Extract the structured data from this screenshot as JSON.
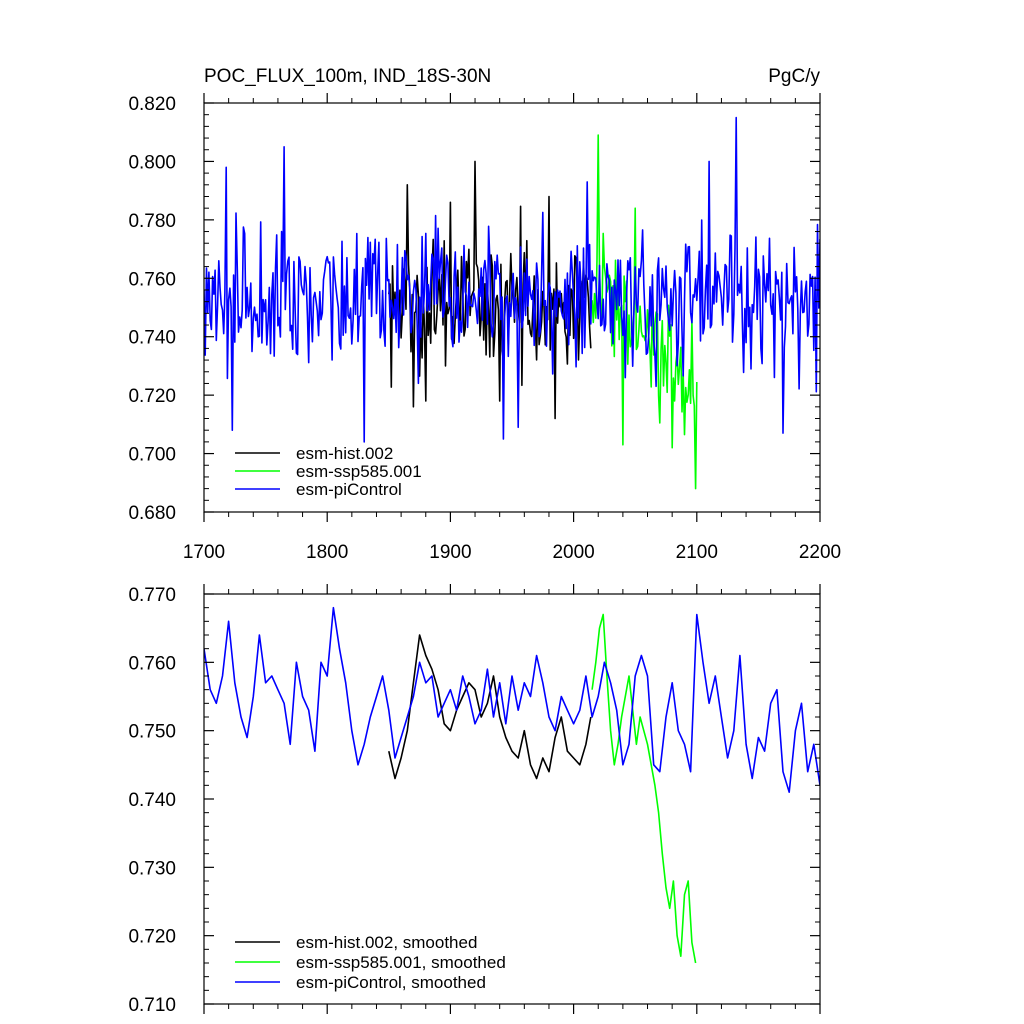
{
  "figure": {
    "title_left": "POC_FLUX_100m, IND_18S-30N",
    "title_right": "PgC/y"
  },
  "chart_data": [
    {
      "type": "line",
      "panel": "raw",
      "title": "POC_FLUX_100m, IND_18S-30N",
      "units": "PgC/y",
      "xlim": [
        1700,
        2200
      ],
      "ylim": [
        0.68,
        0.82
      ],
      "xticks": [
        1700,
        1800,
        1900,
        2000,
        2100,
        2200
      ],
      "yticks": [
        0.68,
        0.7,
        0.72,
        0.74,
        0.76,
        0.78,
        0.8,
        0.82
      ],
      "x_tick_labels": [
        "1700",
        "1800",
        "1900",
        "2000",
        "2100",
        "2200"
      ],
      "y_tick_labels": [
        "0.680",
        "0.700",
        "0.720",
        "0.740",
        "0.760",
        "0.780",
        "0.800",
        "0.820"
      ],
      "legend_location": "bottom-left",
      "series": [
        {
          "name": "esm-hist.002",
          "color": "#000000",
          "x_start": 1850,
          "x_end": 2014,
          "mean": 0.751,
          "spread": 0.018,
          "peaks": [
            [
              1865,
              0.792
            ],
            [
              1920,
              0.8
            ],
            [
              1900,
              0.786
            ],
            [
              1980,
              0.788
            ],
            [
              1985,
              0.78
            ]
          ],
          "troughs": [
            [
              1870,
              0.716
            ],
            [
              1940,
              0.718
            ],
            [
              1985,
              0.712
            ],
            [
              1880,
              0.718
            ]
          ]
        },
        {
          "name": "esm-ssp585.001",
          "color": "#00ff00",
          "x_start": 2015,
          "x_end": 2100,
          "mean_start": 0.757,
          "mean_end": 0.72,
          "spread": 0.017,
          "peaks": [
            [
              2020,
              0.809
            ],
            [
              2050,
              0.784
            ]
          ],
          "troughs": [
            [
              2099,
              0.688
            ],
            [
              2080,
              0.702
            ],
            [
              2040,
              0.703
            ]
          ]
        },
        {
          "name": "esm-piControl",
          "color": "#0000ff",
          "x_start": 1700,
          "x_end": 2200,
          "mean": 0.753,
          "spread": 0.019,
          "peaks": [
            [
              1765,
              0.805
            ],
            [
              2132,
              0.815
            ],
            [
              1718,
              0.798
            ],
            [
              2110,
              0.8
            ],
            [
              2011,
              0.793
            ]
          ],
          "troughs": [
            [
              1830,
              0.704
            ],
            [
              1723,
              0.708
            ],
            [
              2170,
              0.707
            ],
            [
              1943,
              0.705
            ],
            [
              1955,
              0.709
            ]
          ]
        }
      ]
    },
    {
      "type": "line",
      "panel": "smoothed",
      "xlim": [
        1700,
        2200
      ],
      "ylim": [
        0.71,
        0.77
      ],
      "xticks": [
        1700,
        1800,
        1900,
        2000,
        2100,
        2200
      ],
      "yticks": [
        0.71,
        0.72,
        0.73,
        0.74,
        0.75,
        0.76,
        0.77
      ],
      "y_tick_labels": [
        "0.710",
        "0.720",
        "0.730",
        "0.740",
        "0.750",
        "0.760",
        "0.770"
      ],
      "legend_location": "bottom-left",
      "series": [
        {
          "name": "esm-hist.002, smoothed",
          "color": "#000000",
          "x": [
            1850,
            1855,
            1860,
            1865,
            1870,
            1875,
            1880,
            1885,
            1890,
            1895,
            1900,
            1905,
            1910,
            1915,
            1920,
            1925,
            1930,
            1935,
            1940,
            1945,
            1950,
            1955,
            1960,
            1965,
            1970,
            1975,
            1980,
            1985,
            1990,
            1995,
            2000,
            2005,
            2010,
            2014
          ],
          "values": [
            0.747,
            0.743,
            0.746,
            0.75,
            0.757,
            0.764,
            0.761,
            0.759,
            0.756,
            0.751,
            0.75,
            0.753,
            0.755,
            0.757,
            0.756,
            0.752,
            0.754,
            0.758,
            0.752,
            0.749,
            0.747,
            0.746,
            0.75,
            0.745,
            0.743,
            0.746,
            0.744,
            0.749,
            0.752,
            0.747,
            0.746,
            0.745,
            0.748,
            0.752
          ]
        },
        {
          "name": "esm-ssp585.001, smoothed",
          "color": "#00ff00",
          "x": [
            2015,
            2018,
            2021,
            2024,
            2027,
            2030,
            2033,
            2036,
            2039,
            2042,
            2045,
            2048,
            2051,
            2054,
            2057,
            2060,
            2063,
            2066,
            2069,
            2072,
            2075,
            2078,
            2081,
            2084,
            2087,
            2090,
            2093,
            2096,
            2099
          ],
          "values": [
            0.756,
            0.76,
            0.765,
            0.767,
            0.758,
            0.75,
            0.745,
            0.748,
            0.752,
            0.755,
            0.758,
            0.753,
            0.748,
            0.752,
            0.75,
            0.748,
            0.745,
            0.742,
            0.738,
            0.732,
            0.727,
            0.724,
            0.728,
            0.72,
            0.717,
            0.726,
            0.728,
            0.719,
            0.716
          ]
        },
        {
          "name": "esm-piControl, smoothed",
          "color": "#0000ff",
          "x": [
            1700,
            1705,
            1710,
            1715,
            1720,
            1725,
            1730,
            1735,
            1740,
            1745,
            1750,
            1755,
            1760,
            1765,
            1770,
            1775,
            1780,
            1785,
            1790,
            1795,
            1800,
            1805,
            1810,
            1815,
            1820,
            1825,
            1830,
            1835,
            1840,
            1845,
            1850,
            1855,
            1860,
            1865,
            1870,
            1875,
            1880,
            1885,
            1890,
            1895,
            1900,
            1905,
            1910,
            1915,
            1920,
            1925,
            1930,
            1935,
            1940,
            1945,
            1950,
            1955,
            1960,
            1965,
            1970,
            1975,
            1980,
            1985,
            1990,
            1995,
            2000,
            2005,
            2010,
            2015,
            2020,
            2025,
            2030,
            2035,
            2040,
            2045,
            2050,
            2055,
            2060,
            2065,
            2070,
            2075,
            2080,
            2085,
            2090,
            2095,
            2100,
            2105,
            2110,
            2115,
            2120,
            2125,
            2130,
            2135,
            2140,
            2145,
            2150,
            2155,
            2160,
            2165,
            2170,
            2175,
            2180,
            2185,
            2190,
            2195,
            2200
          ],
          "values": [
            0.762,
            0.756,
            0.754,
            0.758,
            0.766,
            0.757,
            0.752,
            0.749,
            0.755,
            0.764,
            0.757,
            0.758,
            0.756,
            0.754,
            0.748,
            0.76,
            0.755,
            0.753,
            0.747,
            0.76,
            0.758,
            0.768,
            0.762,
            0.757,
            0.75,
            0.745,
            0.748,
            0.752,
            0.755,
            0.758,
            0.753,
            0.746,
            0.749,
            0.752,
            0.755,
            0.76,
            0.757,
            0.758,
            0.752,
            0.754,
            0.756,
            0.753,
            0.758,
            0.755,
            0.751,
            0.753,
            0.759,
            0.752,
            0.757,
            0.751,
            0.758,
            0.753,
            0.757,
            0.755,
            0.761,
            0.757,
            0.752,
            0.75,
            0.755,
            0.753,
            0.751,
            0.753,
            0.758,
            0.752,
            0.755,
            0.76,
            0.757,
            0.753,
            0.745,
            0.748,
            0.758,
            0.761,
            0.758,
            0.745,
            0.744,
            0.752,
            0.757,
            0.75,
            0.748,
            0.744,
            0.767,
            0.76,
            0.754,
            0.758,
            0.752,
            0.746,
            0.75,
            0.761,
            0.748,
            0.743,
            0.749,
            0.747,
            0.754,
            0.756,
            0.744,
            0.741,
            0.75,
            0.754,
            0.744,
            0.748,
            0.742
          ]
        }
      ]
    }
  ]
}
